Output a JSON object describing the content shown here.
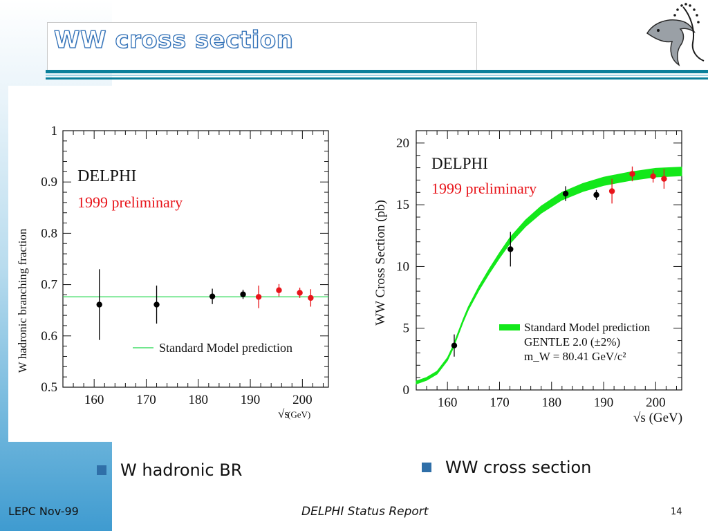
{
  "slide": {
    "title": "WW cross section",
    "footer_left": "LEPC Nov-99",
    "footer_center": "DELPHI Status Report",
    "page_number": "14",
    "bullets": [
      "W hadronic BR",
      "WW cross section"
    ],
    "logo_icon": "delphi-dolphin-logo"
  },
  "colors": {
    "accent": "#0a7f9a",
    "bullet": "#2f6fa8",
    "highlight_red": "#e8141a",
    "band_green": "#13e81a"
  },
  "chart_data": [
    {
      "type": "scatter",
      "ylabel": "W hadronic branching fraction",
      "xlabel": "√s",
      "xlabel_unit": "(GeV)",
      "xlim": [
        154,
        205
      ],
      "ylim": [
        0.5,
        1.0
      ],
      "xticks": [
        "160",
        "170",
        "180",
        "190",
        "200"
      ],
      "yticks": [
        "0.5",
        "0.6",
        "0.7",
        "0.8",
        "0.9",
        "1"
      ],
      "annotations": [
        "DELPHI",
        "1999 preliminary"
      ],
      "reference_line": {
        "value": 0.676,
        "label": "Standard Model prediction"
      },
      "series": [
        {
          "name": "",
          "color": "#000000",
          "points": [
            {
              "x": 161,
              "y": 0.661,
              "err": 0.069
            },
            {
              "x": 172,
              "y": 0.661,
              "err": 0.037
            },
            {
              "x": 182.7,
              "y": 0.677,
              "err": 0.015
            },
            {
              "x": 188.6,
              "y": 0.681,
              "err": 0.009
            }
          ]
        },
        {
          "name": "1999 preliminary",
          "color": "#e8141a",
          "points": [
            {
              "x": 191.6,
              "y": 0.676,
              "err": 0.022
            },
            {
              "x": 195.5,
              "y": 0.689,
              "err": 0.012
            },
            {
              "x": 199.5,
              "y": 0.684,
              "err": 0.01
            },
            {
              "x": 201.6,
              "y": 0.674,
              "err": 0.017
            }
          ]
        }
      ]
    },
    {
      "type": "scatter",
      "ylabel": "WW Cross Section (pb)",
      "xlabel": "√s (GeV)",
      "xlim": [
        154,
        205
      ],
      "ylim": [
        0,
        21
      ],
      "xticks": [
        "160",
        "170",
        "180",
        "190",
        "200"
      ],
      "yticks": [
        "0",
        "5",
        "10",
        "15",
        "20"
      ],
      "annotations": [
        "DELPHI",
        "1999 preliminary"
      ],
      "legend": {
        "placement": "bottom-right",
        "entries": [
          "Standard Model prediction",
          "GENTLE 2.0 (±2%)",
          "m_W = 80.41 GeV/c²"
        ]
      },
      "band": {
        "name": "Standard Model prediction",
        "x": [
          154,
          156,
          158,
          160,
          161,
          162,
          163,
          164,
          166,
          168,
          170,
          172,
          175,
          178,
          182,
          186,
          190,
          195,
          200,
          205
        ],
        "y": [
          0.6,
          0.9,
          1.4,
          2.5,
          3.4,
          4.5,
          5.6,
          6.6,
          8.2,
          9.6,
          10.9,
          12.1,
          13.5,
          14.6,
          15.7,
          16.4,
          16.9,
          17.3,
          17.6,
          17.7
        ],
        "rel_width": 0.02
      },
      "series": [
        {
          "name": "",
          "color": "#000000",
          "points": [
            {
              "x": 161.3,
              "y": 3.6,
              "err": 0.9
            },
            {
              "x": 172.1,
              "y": 11.4,
              "err": 1.4
            },
            {
              "x": 182.7,
              "y": 15.9,
              "err": 0.6
            },
            {
              "x": 188.6,
              "y": 15.8,
              "err": 0.4
            }
          ]
        },
        {
          "name": "1999 preliminary",
          "color": "#e8141a",
          "points": [
            {
              "x": 191.6,
              "y": 16.1,
              "err": 1.0
            },
            {
              "x": 195.5,
              "y": 17.5,
              "err": 0.6
            },
            {
              "x": 199.5,
              "y": 17.3,
              "err": 0.5
            },
            {
              "x": 201.6,
              "y": 17.1,
              "err": 0.8
            }
          ]
        }
      ]
    }
  ]
}
